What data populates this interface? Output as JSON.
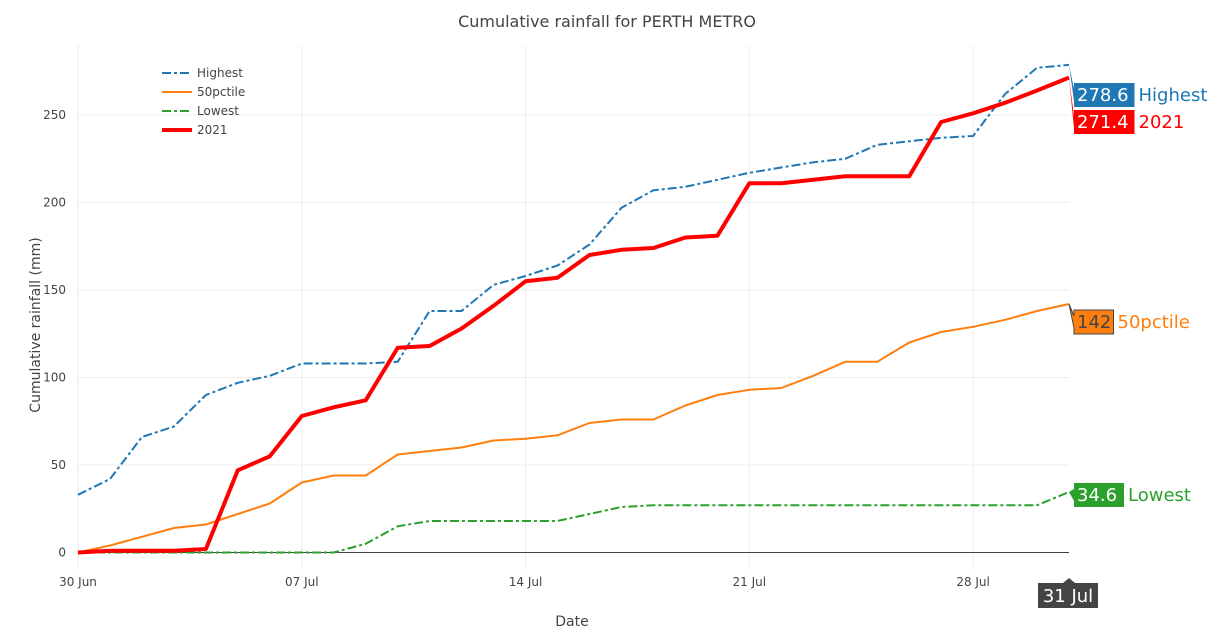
{
  "chart_data": {
    "type": "line",
    "title": "Cumulative rainfall for PERTH METRO",
    "xlabel": "Date",
    "ylabel": "Cumulative rainfall (mm)",
    "x_ticks": [
      {
        "day": 0,
        "label": "30 Jun"
      },
      {
        "day": 7,
        "label": "07 Jul"
      },
      {
        "day": 14,
        "label": "14 Jul"
      },
      {
        "day": 21,
        "label": "21 Jul"
      },
      {
        "day": 28,
        "label": "28 Jul"
      }
    ],
    "y_ticks": [
      0,
      50,
      100,
      150,
      200,
      250
    ],
    "xlim": [
      "2021-06-30",
      "2021-07-31"
    ],
    "ylim": [
      -10,
      290
    ],
    "grid": true,
    "legend_position": "top-left",
    "x": [
      "2021-06-30",
      "2021-07-01",
      "2021-07-02",
      "2021-07-03",
      "2021-07-04",
      "2021-07-05",
      "2021-07-06",
      "2021-07-07",
      "2021-07-08",
      "2021-07-09",
      "2021-07-10",
      "2021-07-11",
      "2021-07-12",
      "2021-07-13",
      "2021-07-14",
      "2021-07-15",
      "2021-07-16",
      "2021-07-17",
      "2021-07-18",
      "2021-07-19",
      "2021-07-20",
      "2021-07-21",
      "2021-07-22",
      "2021-07-23",
      "2021-07-24",
      "2021-07-25",
      "2021-07-26",
      "2021-07-27",
      "2021-07-28",
      "2021-07-29",
      "2021-07-30",
      "2021-07-31"
    ],
    "series": [
      {
        "name": "Highest",
        "color": "#1f77b4",
        "dash": "dashdot",
        "width": 2,
        "values": [
          33,
          42,
          66,
          72,
          90,
          97,
          101,
          108,
          108,
          108,
          109,
          138,
          138,
          153,
          158,
          164,
          176,
          197,
          207,
          209,
          213,
          217,
          220,
          223,
          225,
          233,
          235,
          237,
          238,
          262,
          277,
          278.6
        ]
      },
      {
        "name": "50pctile",
        "color": "#ff7f0e",
        "dash": "solid",
        "width": 2,
        "values": [
          0,
          4,
          9,
          14,
          16,
          22,
          28,
          40,
          44,
          44,
          56,
          58,
          60,
          64,
          65,
          67,
          74,
          76,
          76,
          84,
          90,
          93,
          94,
          101,
          109,
          109,
          120,
          126,
          129,
          133,
          138,
          142
        ]
      },
      {
        "name": "Lowest",
        "color": "#2ca02c",
        "dash": "dashdot",
        "width": 2,
        "values": [
          0,
          0,
          0,
          0,
          0,
          0,
          0,
          0,
          0,
          5,
          15,
          18,
          18,
          18,
          18,
          18,
          22,
          26,
          27,
          27,
          27,
          27,
          27,
          27,
          27,
          27,
          27,
          27,
          27,
          27,
          27,
          34.6
        ]
      },
      {
        "name": "2021",
        "color": "#ff0000",
        "dash": "solid",
        "width": 4,
        "values": [
          0,
          1,
          1,
          1,
          2,
          47,
          55,
          78,
          83,
          87,
          117,
          118,
          128,
          141,
          155,
          157,
          170,
          173,
          174,
          180,
          181,
          211,
          211,
          213,
          215,
          215,
          215,
          246,
          251,
          257,
          264,
          271.4
        ]
      }
    ],
    "hover": {
      "x_label": "31 Jul",
      "items": [
        {
          "series": "Highest",
          "value": "278.6",
          "label": "Highest",
          "color": "#1f77b4"
        },
        {
          "series": "2021",
          "value": "271.4",
          "label": "2021",
          "color": "#ff0000"
        },
        {
          "series": "50pctile",
          "value": "142",
          "label": "50pctile",
          "color": "#ff7f0e"
        },
        {
          "series": "Lowest",
          "value": "34.6",
          "label": "Lowest",
          "color": "#2ca02c"
        }
      ]
    }
  }
}
